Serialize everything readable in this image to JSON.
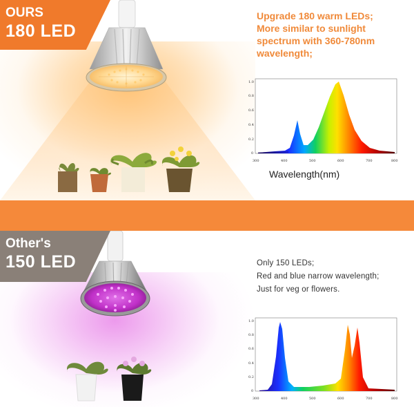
{
  "top": {
    "badge_line1": "OURS",
    "badge_line2": "180 LED",
    "headline": [
      "Upgrade 180 warm LEDs;",
      "More similar to sunlight",
      "spectrum with 360-780nm",
      "wavelength;"
    ],
    "x_axis_label": "Wavelength(nm)",
    "x_ticks": [
      "300",
      "400",
      "500",
      "600",
      "700",
      "800"
    ],
    "y_ticks": [
      "1.0",
      "0.8",
      "0.6",
      "0.4",
      "0.2",
      "0"
    ]
  },
  "bottom": {
    "badge_line1": "Other's",
    "badge_line2": "150 LED",
    "info": [
      "Only 150 LEDs;",
      "Red and blue narrow wavelength;",
      "Just for veg or flowers."
    ],
    "x_ticks": [
      "300",
      "400",
      "500",
      "600",
      "700",
      "800"
    ],
    "y_ticks": [
      "1.0",
      "0.8",
      "0.6",
      "0.4",
      "0.2",
      "0"
    ]
  },
  "colors": {
    "accent_orange": "#f07a2b",
    "headline_orange": "#f08a3a",
    "badge_gray": "#8a8078",
    "bar_orange": "#f5893a",
    "warm_led": "#ffd79a",
    "purple_led": "#d23cd8"
  },
  "icons": {
    "warm_lamp": "led-bulb-warm-icon",
    "purple_lamp": "led-bulb-purple-icon",
    "plant": "potted-plant-icon"
  }
}
